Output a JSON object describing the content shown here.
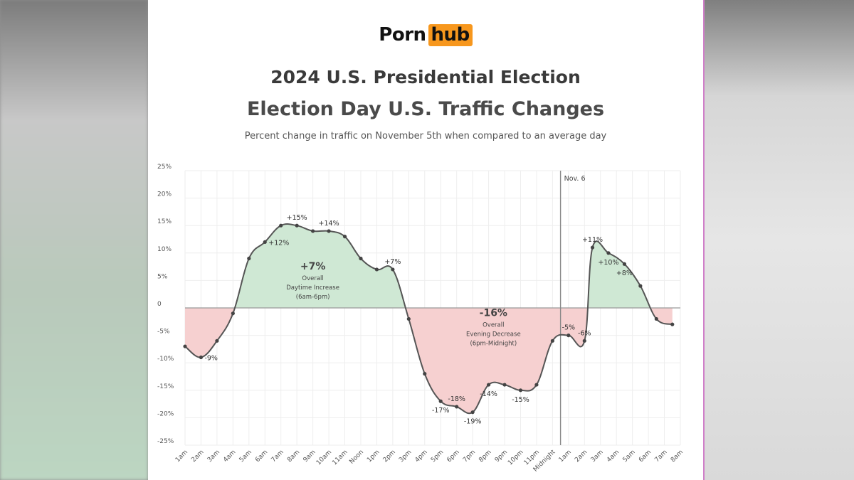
{
  "brand": {
    "logo_left": "Porn",
    "logo_right": "hub"
  },
  "title": "2024 U.S. Presidential Election",
  "subtitle": "Election Day U.S. Traffic Changes",
  "description": "Percent change in traffic on November 5th when compared to an average day",
  "colors": {
    "line": "#555555",
    "positive_fill": "#cfe8d4",
    "negative_fill": "#f6d0d0",
    "grid": "#eeeeee",
    "zero_line": "#999999",
    "logo_accent": "#f7971d"
  },
  "chart_data": {
    "type": "line",
    "ylim": [
      -25,
      25
    ],
    "y_ticks": [
      "25%",
      "20%",
      "15%",
      "10%",
      "5%",
      "0",
      "-5%",
      "-10%",
      "-15%",
      "-20%",
      "-25%"
    ],
    "y_tick_values": [
      25,
      20,
      15,
      10,
      5,
      0,
      -5,
      -10,
      -15,
      -20,
      -25
    ],
    "x_tick_labels": [
      "1am",
      "2am",
      "3am",
      "4am",
      "5am",
      "6am",
      "7am",
      "8am",
      "9am",
      "10am",
      "11am",
      "Noon",
      "1pm",
      "2pm",
      "3pm",
      "4pm",
      "5pm",
      "6pm",
      "7pm",
      "8pm",
      "9pm",
      "10pm",
      "11pm",
      "Midnight",
      "1am",
      "2am",
      "3am",
      "4am",
      "5am",
      "6am",
      "7am",
      "8am"
    ],
    "points": [
      {
        "x": 0.0,
        "y": -7
      },
      {
        "x": 1.0,
        "y": -9
      },
      {
        "x": 2.0,
        "y": -6
      },
      {
        "x": 3.0,
        "y": -1
      },
      {
        "x": 4.0,
        "y": 9
      },
      {
        "x": 5.0,
        "y": 12
      },
      {
        "x": 6.0,
        "y": 15
      },
      {
        "x": 7.0,
        "y": 15
      },
      {
        "x": 8.0,
        "y": 14
      },
      {
        "x": 9.0,
        "y": 14
      },
      {
        "x": 10.0,
        "y": 13
      },
      {
        "x": 11.0,
        "y": 9
      },
      {
        "x": 12.0,
        "y": 7
      },
      {
        "x": 13.0,
        "y": 7
      },
      {
        "x": 14.0,
        "y": -2
      },
      {
        "x": 15.0,
        "y": -12
      },
      {
        "x": 16.0,
        "y": -17
      },
      {
        "x": 17.0,
        "y": -18
      },
      {
        "x": 18.0,
        "y": -19
      },
      {
        "x": 19.0,
        "y": -14
      },
      {
        "x": 20.0,
        "y": -14
      },
      {
        "x": 21.0,
        "y": -15
      },
      {
        "x": 22.0,
        "y": -14
      },
      {
        "x": 23.0,
        "y": -6
      },
      {
        "x": 24.0,
        "y": -5
      },
      {
        "x": 25.0,
        "y": -6
      },
      {
        "x": 25.5,
        "y": 11
      },
      {
        "x": 26.5,
        "y": 10
      },
      {
        "x": 27.5,
        "y": 8
      },
      {
        "x": 28.5,
        "y": 4
      },
      {
        "x": 29.5,
        "y": -2
      },
      {
        "x": 30.5,
        "y": -3
      }
    ],
    "point_labels": [
      {
        "x": 1.0,
        "y": -9,
        "text": "-9%",
        "pos": "right"
      },
      {
        "x": 5.0,
        "y": 12,
        "text": "+12%",
        "pos": "right"
      },
      {
        "x": 7.0,
        "y": 15,
        "text": "+15%",
        "pos": "above"
      },
      {
        "x": 9.0,
        "y": 14,
        "text": "+14%",
        "pos": "above"
      },
      {
        "x": 13.0,
        "y": 7,
        "text": "+7%",
        "pos": "above"
      },
      {
        "x": 16.0,
        "y": -17,
        "text": "-17%",
        "pos": "below"
      },
      {
        "x": 17.0,
        "y": -18,
        "text": "-18%",
        "pos": "above"
      },
      {
        "x": 18.0,
        "y": -19,
        "text": "-19%",
        "pos": "below"
      },
      {
        "x": 19.0,
        "y": -14,
        "text": "-14%",
        "pos": "below"
      },
      {
        "x": 21.0,
        "y": -15,
        "text": "-15%",
        "pos": "below"
      },
      {
        "x": 24.0,
        "y": -5,
        "text": "-5%",
        "pos": "above"
      },
      {
        "x": 25.0,
        "y": -6,
        "text": "-6%",
        "pos": "above"
      },
      {
        "x": 25.5,
        "y": 11,
        "text": "+11%",
        "pos": "above"
      },
      {
        "x": 26.5,
        "y": 10,
        "text": "+10%",
        "pos": "below"
      },
      {
        "x": 27.5,
        "y": 8,
        "text": "+8%",
        "pos": "below"
      }
    ],
    "nov6_marker": {
      "x": 23.5,
      "label": "Nov. 6"
    },
    "annotations": [
      {
        "x": 8.0,
        "y": 7,
        "value": "+7%",
        "lines": [
          "Overall",
          "Daytime Increase",
          "(6am-6pm)"
        ]
      },
      {
        "x": 19.3,
        "y": -1.5,
        "value": "-16%",
        "lines": [
          "Overall",
          "Evening Decrease",
          "(6pm-Midnight)"
        ]
      }
    ],
    "grid": true
  }
}
